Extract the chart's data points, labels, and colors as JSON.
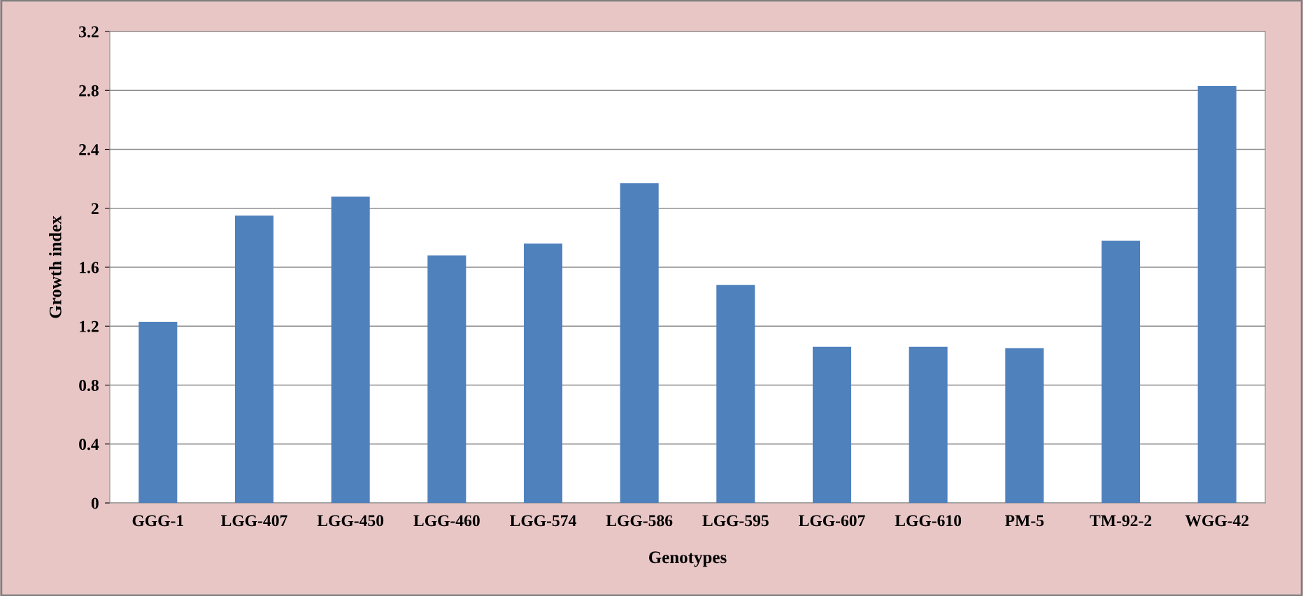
{
  "chart_data": {
    "type": "bar",
    "xlabel": "Genotypes",
    "ylabel": "Growth index",
    "categories": [
      "GGG-1",
      "LGG-407",
      "LGG-450",
      "LGG-460",
      "LGG-574",
      "LGG-586",
      "LGG-595",
      "LGG-607",
      "LGG-610",
      "PM-5",
      "TM-92-2",
      "WGG-42"
    ],
    "values": [
      1.23,
      1.95,
      2.08,
      1.68,
      1.76,
      2.17,
      1.48,
      1.06,
      1.06,
      1.05,
      1.78,
      2.83
    ],
    "color": "#4f81bd",
    "ylim": [
      0,
      3.2
    ],
    "yticks": [
      0,
      0.4,
      0.8,
      1.2,
      1.6,
      2,
      2.4,
      2.8,
      3.2
    ],
    "grid": "y",
    "legend": false
  }
}
